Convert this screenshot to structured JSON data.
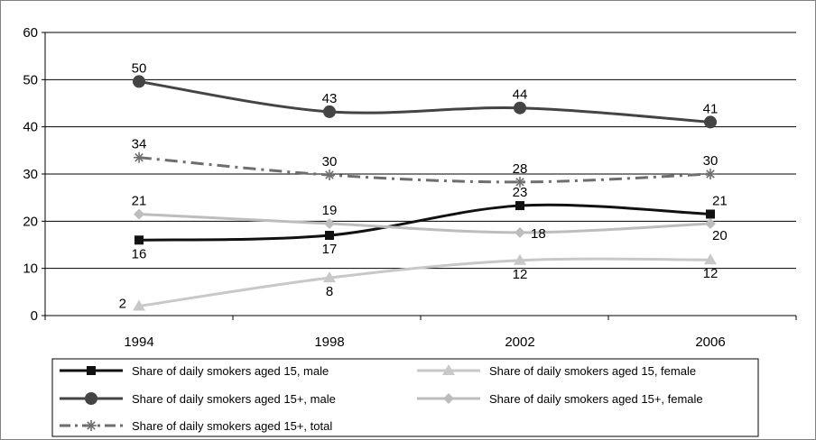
{
  "chart_data": {
    "type": "line",
    "title": "",
    "xlabel": "",
    "ylabel": "",
    "x": [
      "1994",
      "1998",
      "2002",
      "2006"
    ],
    "ylim": [
      0,
      60
    ],
    "yticks": [
      0,
      10,
      20,
      30,
      40,
      50,
      60
    ],
    "grid": true,
    "legend_position": "bottom",
    "series": [
      {
        "key": "m15",
        "name": "Share of daily smokers aged 15, male",
        "values": [
          16,
          17,
          23,
          21
        ],
        "plot_values": [
          16,
          17,
          23.3,
          21.5
        ],
        "labels": [
          "16",
          "17",
          "23",
          "21"
        ],
        "color": "#111111",
        "marker": "square",
        "dash": "solid",
        "label_pos": [
          "below",
          "below",
          "above",
          "above-right"
        ]
      },
      {
        "key": "f15",
        "name": "Share of daily smokers aged 15, female",
        "values": [
          2,
          8,
          12,
          12
        ],
        "plot_values": [
          2,
          8,
          11.7,
          11.8
        ],
        "labels": [
          "2",
          "8",
          "12",
          "12"
        ],
        "color": "#c8c8c8",
        "marker": "triangle",
        "dash": "solid",
        "label_pos": [
          "left",
          "below",
          "below",
          "below"
        ]
      },
      {
        "key": "m15p",
        "name": "Share of daily smokers aged 15+, male",
        "values": [
          50,
          43,
          44,
          41
        ],
        "plot_values": [
          49.6,
          43.2,
          44,
          41
        ],
        "labels": [
          "50",
          "43",
          "44",
          "41"
        ],
        "color": "#444444",
        "marker": "circle",
        "dash": "solid",
        "label_pos": [
          "above",
          "above",
          "above",
          "above"
        ]
      },
      {
        "key": "f15p",
        "name": "Share of daily smokers aged 15+, female",
        "values": [
          21,
          19,
          18,
          20
        ],
        "plot_values": [
          21.5,
          19.5,
          17.6,
          19.5
        ],
        "labels": [
          "21",
          "19",
          "18",
          "20"
        ],
        "color": "#bdbdbd",
        "marker": "diamond",
        "dash": "solid",
        "label_pos": [
          "above",
          "above",
          "right",
          "below-right"
        ]
      },
      {
        "key": "t15p",
        "name": "Share of daily smokers aged 15+, total",
        "values": [
          34,
          30,
          28,
          30
        ],
        "plot_values": [
          33.5,
          29.8,
          28.3,
          30
        ],
        "labels": [
          "34",
          "30",
          "28",
          "30"
        ],
        "color": "#6e6e6e",
        "marker": "star",
        "dash": "dashdot",
        "label_pos": [
          "above",
          "above",
          "above",
          "above"
        ]
      }
    ],
    "legend_order": [
      "m15",
      "f15",
      "m15p",
      "f15p",
      "t15p"
    ]
  }
}
